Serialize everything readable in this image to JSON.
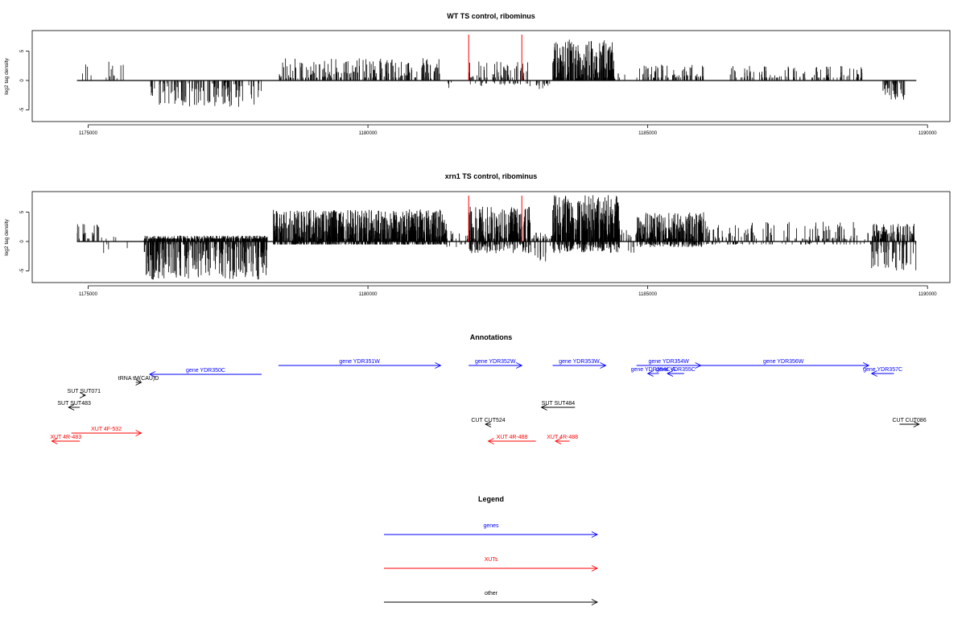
{
  "chart_data": [
    {
      "type": "bar",
      "title": "WT TS control, ribominus",
      "ylabel": "log2 tag density",
      "xlim": [
        1174000,
        1190400
      ],
      "ylim": [
        -7,
        8.5
      ],
      "xticks": [
        1175000,
        1180000,
        1185000,
        1190000
      ],
      "xtick_labels": [
        "1175000",
        "1180000",
        "1185000",
        "1190000"
      ],
      "yticks": [
        -5,
        0,
        5
      ],
      "ytick_labels": [
        "-5",
        "0",
        "5"
      ],
      "baseline": {
        "x": [
          1174800,
          1189800
        ],
        "y": 0
      },
      "markers": [
        {
          "x": 1181800,
          "color": "#ff0000"
        },
        {
          "x": 1182750,
          "color": "#ff0000"
        }
      ],
      "regions": [
        {
          "x": [
            1174800,
            1175700
          ],
          "density": 0.015,
          "max": 3.2,
          "min": 0
        },
        {
          "x": [
            1176100,
            1178100
          ],
          "density": 0.06,
          "max": 0,
          "min": -4.5
        },
        {
          "x": [
            1178400,
            1181300
          ],
          "density": 0.07,
          "max": 3.8,
          "min": 0
        },
        {
          "x": [
            1181300,
            1181500
          ],
          "density": 0.02,
          "max": 0,
          "min": -2.5
        },
        {
          "x": [
            1181800,
            1182900
          ],
          "density": 0.08,
          "max": 3.5,
          "min": -1
        },
        {
          "x": [
            1183000,
            1183300
          ],
          "density": 0.05,
          "max": 0,
          "min": -1.5
        },
        {
          "x": [
            1183300,
            1184400
          ],
          "density": 0.2,
          "max": 7,
          "min": 0
        },
        {
          "x": [
            1184400,
            1184600
          ],
          "density": 0.03,
          "max": 1.5,
          "min": 0
        },
        {
          "x": [
            1184800,
            1186000
          ],
          "density": 0.06,
          "max": 3,
          "min": 0
        },
        {
          "x": [
            1186400,
            1188900
          ],
          "density": 0.04,
          "max": 2.5,
          "min": 0
        },
        {
          "x": [
            1189200,
            1189600
          ],
          "density": 0.1,
          "max": 0,
          "min": -3.5
        }
      ]
    },
    {
      "type": "bar",
      "title": "xrn1 TS control, ribominus",
      "ylabel": "log2 tag density",
      "xlim": [
        1174000,
        1190400
      ],
      "ylim": [
        -7,
        8.5
      ],
      "xticks": [
        1175000,
        1180000,
        1185000,
        1190000
      ],
      "xtick_labels": [
        "1175000",
        "1180000",
        "1185000",
        "1190000"
      ],
      "yticks": [
        -5,
        0,
        5
      ],
      "ytick_labels": [
        "-5",
        "0",
        "5"
      ],
      "baseline": {
        "x": [
          1174800,
          1189800
        ],
        "y": 0
      },
      "markers": [
        {
          "x": 1181800,
          "color": "#ff0000"
        },
        {
          "x": 1182750,
          "color": "#ff0000"
        }
      ],
      "regions": [
        {
          "x": [
            1174800,
            1175200
          ],
          "density": 0.05,
          "max": 3.5,
          "min": 0
        },
        {
          "x": [
            1175200,
            1175700
          ],
          "density": 0.015,
          "max": 2,
          "min": -2
        },
        {
          "x": [
            1176000,
            1178200
          ],
          "density": 0.35,
          "max": 1,
          "min": -6.5
        },
        {
          "x": [
            1178300,
            1181400
          ],
          "density": 0.35,
          "max": 5.5,
          "min": -0.5
        },
        {
          "x": [
            1181400,
            1181800
          ],
          "density": 0.05,
          "max": 2,
          "min": -1
        },
        {
          "x": [
            1181800,
            1182900
          ],
          "density": 0.3,
          "max": 6,
          "min": -2
        },
        {
          "x": [
            1182900,
            1183300
          ],
          "density": 0.1,
          "max": 1.5,
          "min": -3.5
        },
        {
          "x": [
            1183300,
            1184500
          ],
          "density": 0.4,
          "max": 8,
          "min": -2
        },
        {
          "x": [
            1184500,
            1184800
          ],
          "density": 0.05,
          "max": 2,
          "min": -2
        },
        {
          "x": [
            1184800,
            1186000
          ],
          "density": 0.3,
          "max": 5,
          "min": -1
        },
        {
          "x": [
            1186000,
            1189000
          ],
          "density": 0.06,
          "max": 3.5,
          "min": -0.5
        },
        {
          "x": [
            1189000,
            1189800
          ],
          "density": 0.2,
          "max": 3,
          "min": -5
        }
      ]
    },
    {
      "type": "annotation-track",
      "title": "Annotations",
      "features": [
        {
          "label": "gene YDR350C",
          "start": 1178100,
          "end": 1176100,
          "row": 2,
          "color": "#0000ff"
        },
        {
          "label": "gene YDR351W",
          "start": 1178400,
          "end": 1181300,
          "row": 0,
          "color": "#0000ff"
        },
        {
          "label": "gene YDR352W",
          "start": 1181800,
          "end": 1182750,
          "row": 0,
          "color": "#0000ff"
        },
        {
          "label": "gene YDR353W",
          "start": 1183300,
          "end": 1184250,
          "row": 0,
          "color": "#0000ff"
        },
        {
          "label": "gene YDR354W",
          "start": 1184800,
          "end": 1185950,
          "row": 0,
          "color": "#0000ff"
        },
        {
          "label": "gene YDR354C-A",
          "start": 1185200,
          "end": 1185000,
          "row": 1,
          "color": "#0000ff"
        },
        {
          "label": "gene YDR355C",
          "start": 1185650,
          "end": 1185350,
          "row": 1,
          "color": "#0000ff"
        },
        {
          "label": "gene YDR356W",
          "start": 1185900,
          "end": 1188950,
          "row": 0,
          "color": "#0000ff"
        },
        {
          "label": "gene YDR357C",
          "start": 1189400,
          "end": 1189000,
          "row": 1,
          "color": "#0000ff"
        },
        {
          "label": "tRNA tM(CAU)D",
          "start": 1175850,
          "end": 1175950,
          "row": 3,
          "color": "#000000"
        },
        {
          "label": "SUT SUT071",
          "start": 1174900,
          "end": 1174950,
          "row": 4,
          "color": "#000000"
        },
        {
          "label": "SUT SUT483",
          "start": 1174850,
          "end": 1174650,
          "row": 5,
          "color": "#000000"
        },
        {
          "label": "SUT SUT484",
          "start": 1183700,
          "end": 1183100,
          "row": 5,
          "color": "#000000"
        },
        {
          "label": "CUT CUT524",
          "start": 1182200,
          "end": 1182100,
          "row": 6,
          "color": "#000000"
        },
        {
          "label": "CUT CUT086",
          "start": 1189500,
          "end": 1189850,
          "row": 6,
          "color": "#000000"
        },
        {
          "label": "XUT 4F-532",
          "start": 1174700,
          "end": 1175950,
          "row": 7,
          "color": "#ff0000"
        },
        {
          "label": "XUT 4R-483",
          "start": 1174850,
          "end": 1174350,
          "row": 8,
          "color": "#ff0000"
        },
        {
          "label": "XUT 4R-488",
          "start": 1183000,
          "end": 1182150,
          "row": 8,
          "color": "#ff0000"
        },
        {
          "label": "XUT 4R-488",
          "start": 1183600,
          "end": 1183350,
          "row": 8,
          "color": "#ff0000"
        }
      ]
    }
  ],
  "legend": {
    "title": "Legend",
    "entries": [
      {
        "label": "genes",
        "color": "#0000ff"
      },
      {
        "label": "XUTs",
        "color": "#ff0000"
      },
      {
        "label": "other",
        "color": "#000000"
      }
    ]
  }
}
